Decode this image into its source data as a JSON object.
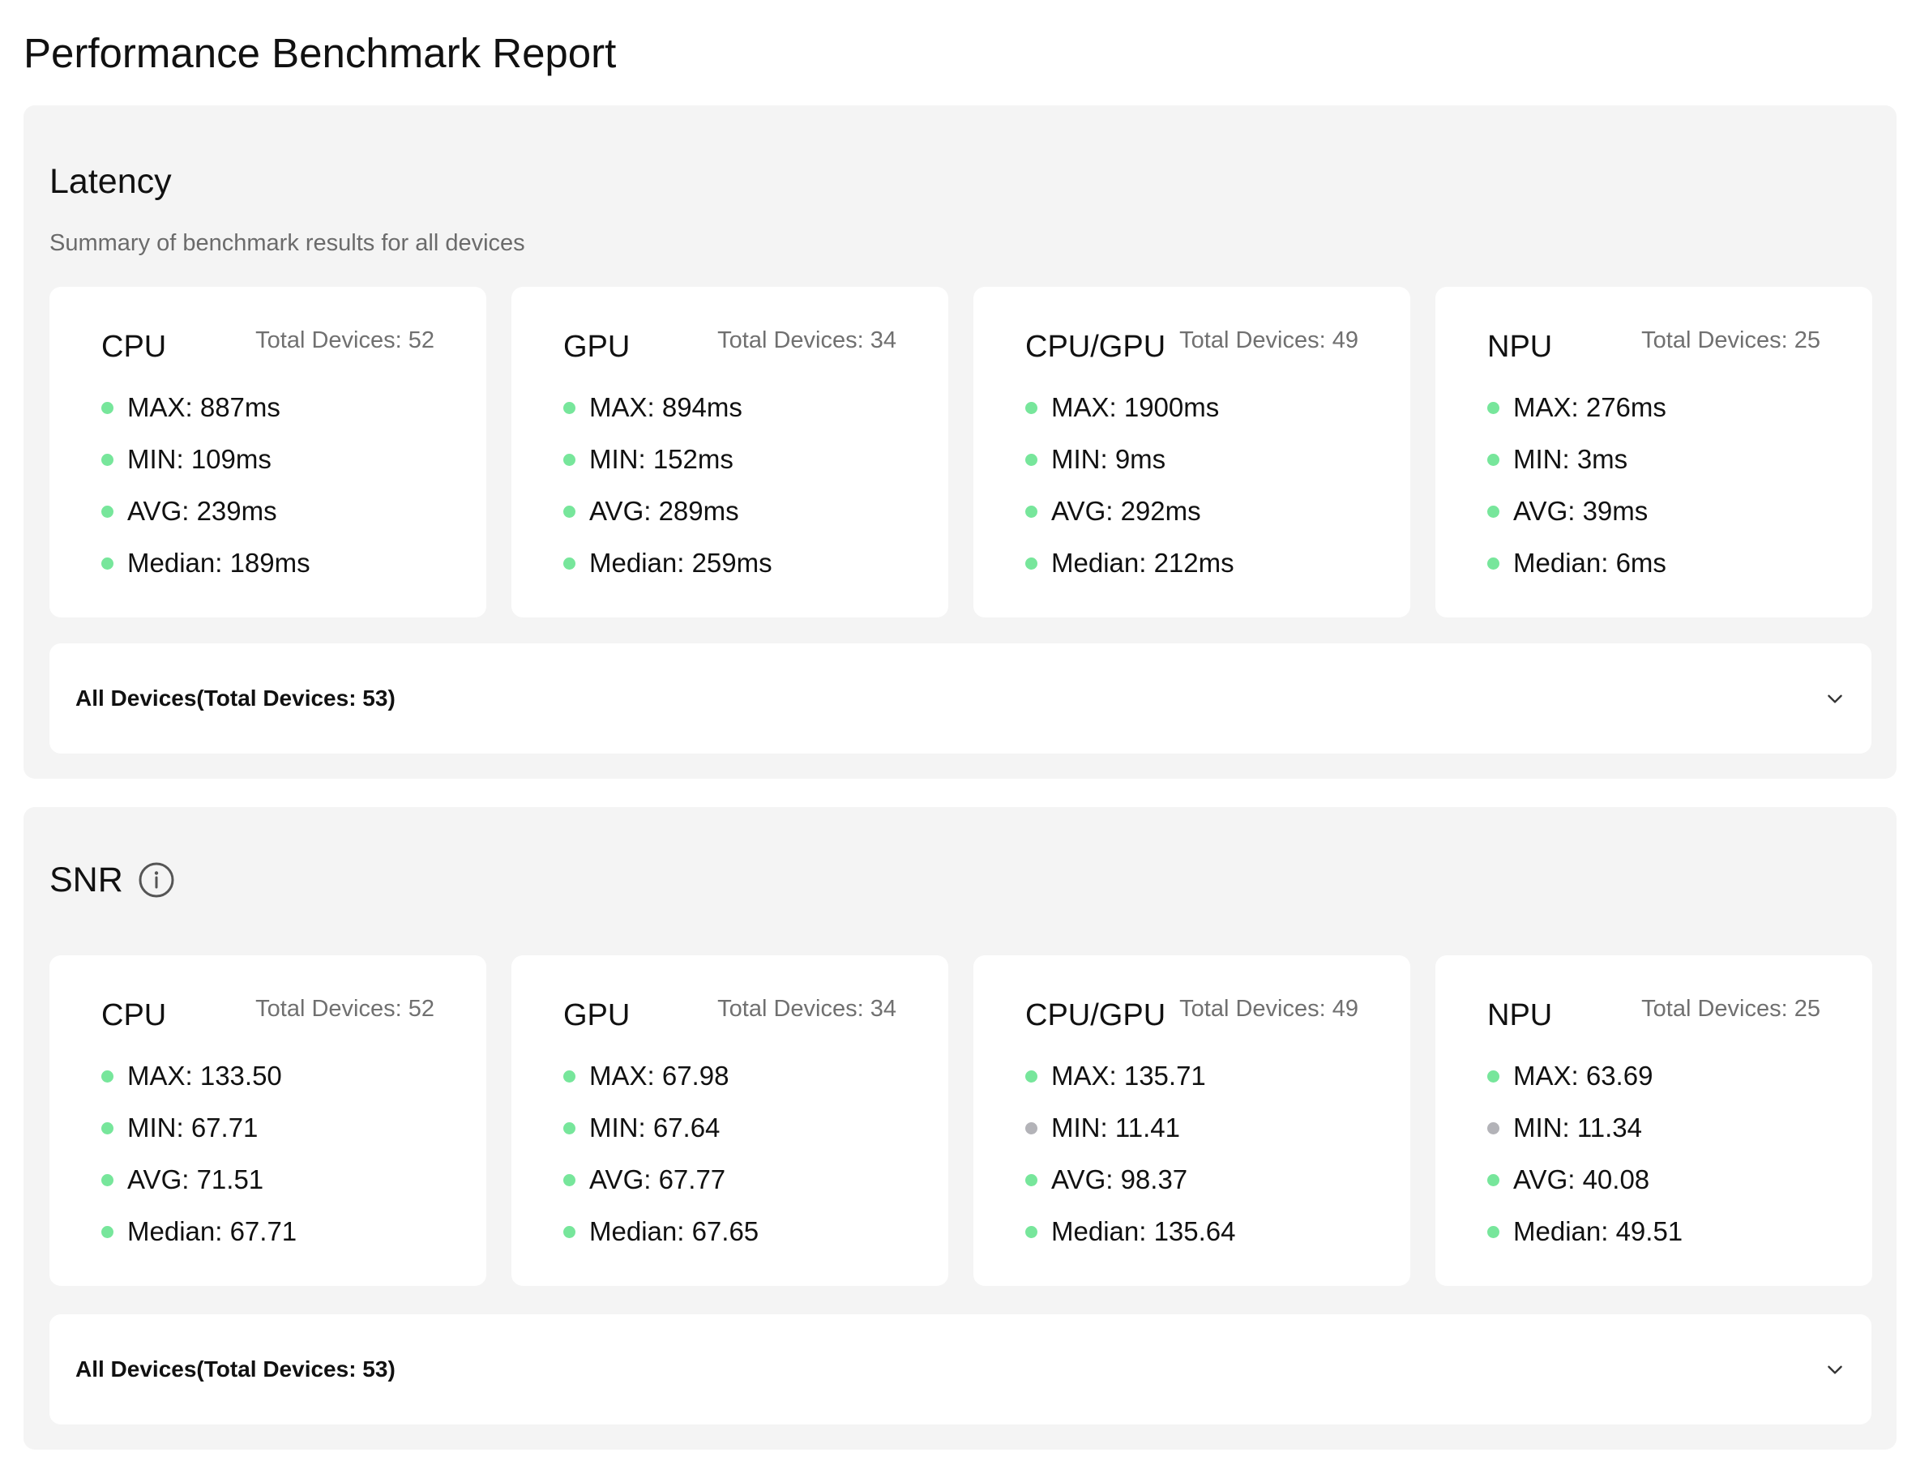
{
  "page": {
    "title": "Performance Benchmark Report"
  },
  "colors": {
    "dot_ok": "#77e69b",
    "dot_low": "#b3b3b8",
    "section_bg": "#f4f4f4",
    "card_bg": "#ffffff"
  },
  "latency": {
    "title": "Latency",
    "subtitle": "Summary of benchmark results for all devices",
    "cards": [
      {
        "name": "CPU",
        "total": "Total Devices: 52",
        "stats": [
          {
            "text": "MAX: 887ms",
            "status": "ok"
          },
          {
            "text": "MIN: 109ms",
            "status": "ok"
          },
          {
            "text": "AVG: 239ms",
            "status": "ok"
          },
          {
            "text": "Median: 189ms",
            "status": "ok"
          }
        ]
      },
      {
        "name": "GPU",
        "total": "Total Devices: 34",
        "stats": [
          {
            "text": "MAX: 894ms",
            "status": "ok"
          },
          {
            "text": "MIN: 152ms",
            "status": "ok"
          },
          {
            "text": "AVG: 289ms",
            "status": "ok"
          },
          {
            "text": "Median: 259ms",
            "status": "ok"
          }
        ]
      },
      {
        "name": "CPU/GPU",
        "total": "Total Devices: 49",
        "stats": [
          {
            "text": "MAX: 1900ms",
            "status": "ok"
          },
          {
            "text": "MIN: 9ms",
            "status": "ok"
          },
          {
            "text": "AVG: 292ms",
            "status": "ok"
          },
          {
            "text": "Median: 212ms",
            "status": "ok"
          }
        ]
      },
      {
        "name": "NPU",
        "total": "Total Devices: 25",
        "stats": [
          {
            "text": "MAX: 276ms",
            "status": "ok"
          },
          {
            "text": "MIN: 3ms",
            "status": "ok"
          },
          {
            "text": "AVG: 39ms",
            "status": "ok"
          },
          {
            "text": "Median: 6ms",
            "status": "ok"
          }
        ]
      }
    ],
    "all_devices_label": "All Devices(Total Devices: 53)"
  },
  "snr": {
    "title": "SNR",
    "info_icon": "info-circle-icon",
    "cards": [
      {
        "name": "CPU",
        "total": "Total Devices: 52",
        "stats": [
          {
            "text": "MAX: 133.50",
            "status": "ok"
          },
          {
            "text": "MIN: 67.71",
            "status": "ok"
          },
          {
            "text": "AVG: 71.51",
            "status": "ok"
          },
          {
            "text": "Median: 67.71",
            "status": "ok"
          }
        ]
      },
      {
        "name": "GPU",
        "total": "Total Devices: 34",
        "stats": [
          {
            "text": "MAX: 67.98",
            "status": "ok"
          },
          {
            "text": "MIN: 67.64",
            "status": "ok"
          },
          {
            "text": "AVG: 67.77",
            "status": "ok"
          },
          {
            "text": "Median: 67.65",
            "status": "ok"
          }
        ]
      },
      {
        "name": "CPU/GPU",
        "total": "Total Devices: 49",
        "stats": [
          {
            "text": "MAX: 135.71",
            "status": "ok"
          },
          {
            "text": "MIN: 11.41",
            "status": "low"
          },
          {
            "text": "AVG: 98.37",
            "status": "ok"
          },
          {
            "text": "Median: 135.64",
            "status": "ok"
          }
        ]
      },
      {
        "name": "NPU",
        "total": "Total Devices: 25",
        "stats": [
          {
            "text": "MAX: 63.69",
            "status": "ok"
          },
          {
            "text": "MIN: 11.34",
            "status": "low"
          },
          {
            "text": "AVG: 40.08",
            "status": "ok"
          },
          {
            "text": "Median: 49.51",
            "status": "ok"
          }
        ]
      }
    ],
    "all_devices_label": "All Devices(Total Devices: 53)"
  }
}
